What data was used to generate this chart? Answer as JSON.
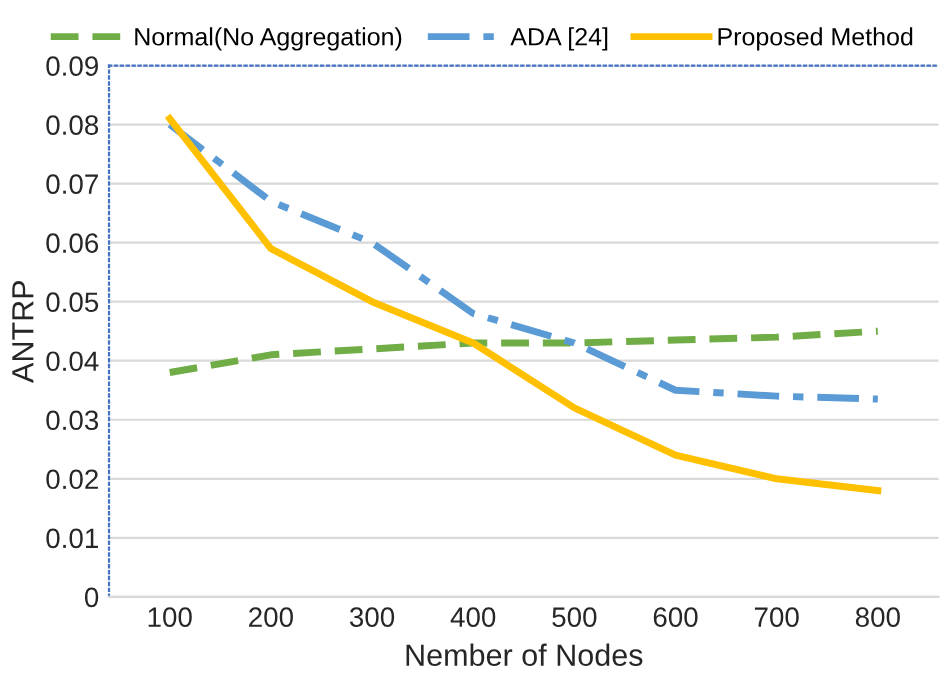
{
  "chart_data": {
    "type": "line",
    "xlabel": "Nember of Nodes",
    "ylabel": "ANTRP",
    "categories": [
      "100",
      "200",
      "300",
      "400",
      "500",
      "600",
      "700",
      "800"
    ],
    "series": [
      {
        "name": "Normal(No Aggregation)",
        "color": "#70ad47",
        "line_style": "dashed",
        "values": [
          0.038,
          0.041,
          0.042,
          0.043,
          0.043,
          0.0435,
          0.044,
          0.045
        ]
      },
      {
        "name": "ADA [24]",
        "color": "#5b9bd5",
        "line_style": "dashdot",
        "values": [
          0.08,
          0.067,
          0.06,
          0.048,
          0.043,
          0.035,
          0.034,
          0.0335
        ]
      },
      {
        "name": "Proposed Method",
        "color": "#ffc000",
        "line_style": "solid",
        "values": [
          0.081,
          0.059,
          0.05,
          0.043,
          0.032,
          0.024,
          0.02,
          0.018
        ]
      }
    ],
    "ylim": [
      0,
      0.09
    ],
    "yticks": [
      0,
      0.01,
      0.02,
      0.03,
      0.04,
      0.05,
      0.06,
      0.07,
      0.08,
      0.09
    ],
    "grid": "y",
    "legend": "top",
    "marker": "none"
  }
}
